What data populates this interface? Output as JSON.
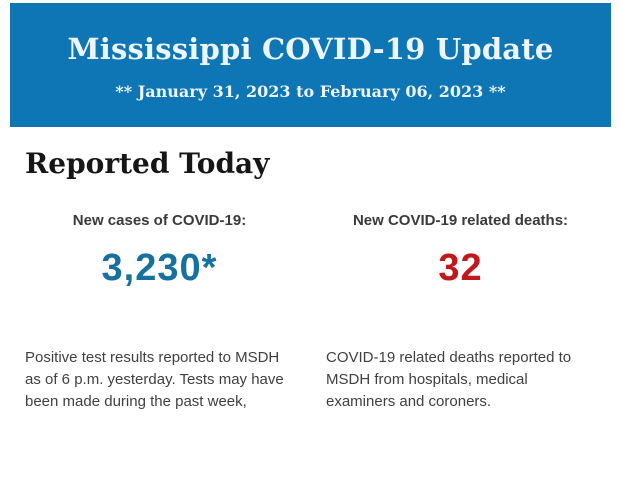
{
  "page": {
    "background_color": "#ffffff"
  },
  "header": {
    "title": "Mississippi COVID-19 Update",
    "subtitle": "** January 31, 2023 to February 06, 2023 **",
    "background_color": "#0e76b4",
    "text_color": "#edf4fa"
  },
  "section": {
    "title": "Reported Today"
  },
  "stats": [
    {
      "label": "New cases of COVID-19:",
      "value": "3,230*",
      "value_color": "#16719f",
      "description": "Positive test results reported to MSDH as of 6 p.m. yesterday. Tests may have been made during the past week,"
    },
    {
      "label": "New COVID-19 related deaths:",
      "value": "32",
      "value_color": "#c0181c",
      "description": "COVID-19 related deaths reported to MSDH from hospitals, medical examiners and coroners."
    }
  ]
}
